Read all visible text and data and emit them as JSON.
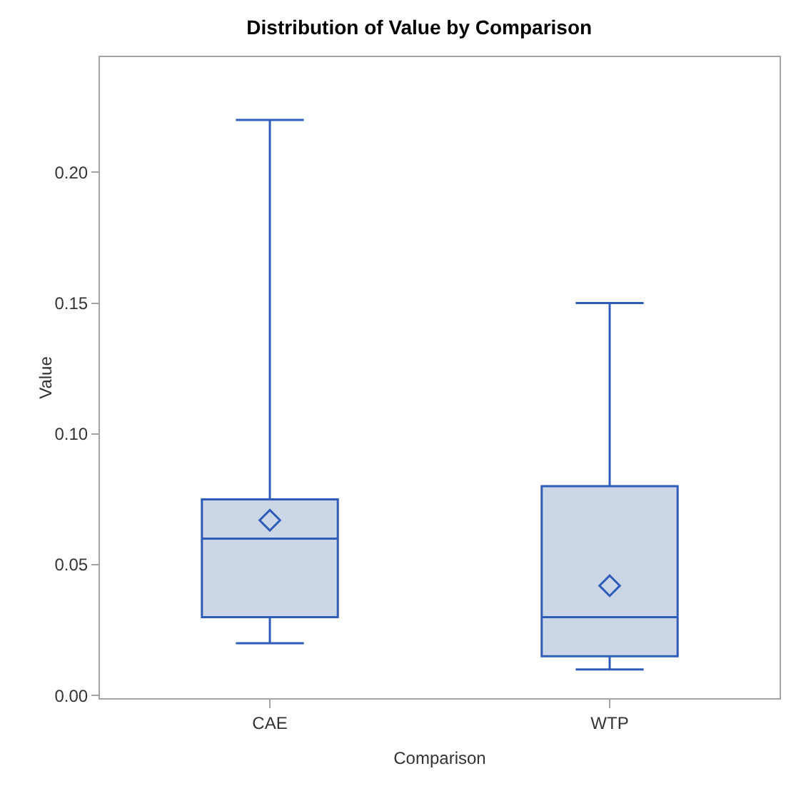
{
  "chart_data": {
    "type": "box",
    "title": "Distribution of Value by Comparison",
    "xlabel": "Comparison",
    "ylabel": "Value",
    "categories": [
      "CAE",
      "WTP"
    ],
    "color": "#2f5cb8",
    "boxes": [
      {
        "low": 0.02,
        "q1": 0.03,
        "median": 0.06,
        "q3": 0.075,
        "high": 0.22,
        "mean": 0.067
      },
      {
        "low": 0.01,
        "q1": 0.015,
        "median": 0.03,
        "q3": 0.08,
        "high": 0.15,
        "mean": 0.042
      }
    ],
    "ylim": [
      -0.001,
      0.244
    ],
    "yticks": [
      {
        "value": 0,
        "label": "0.00"
      },
      {
        "value": 0.05,
        "label": "0.05"
      },
      {
        "value": 0.1,
        "label": "0.10"
      },
      {
        "value": 0.15,
        "label": "0.15"
      },
      {
        "value": 0.2,
        "label": "0.20"
      }
    ],
    "grid": false,
    "marker": "diamond"
  }
}
